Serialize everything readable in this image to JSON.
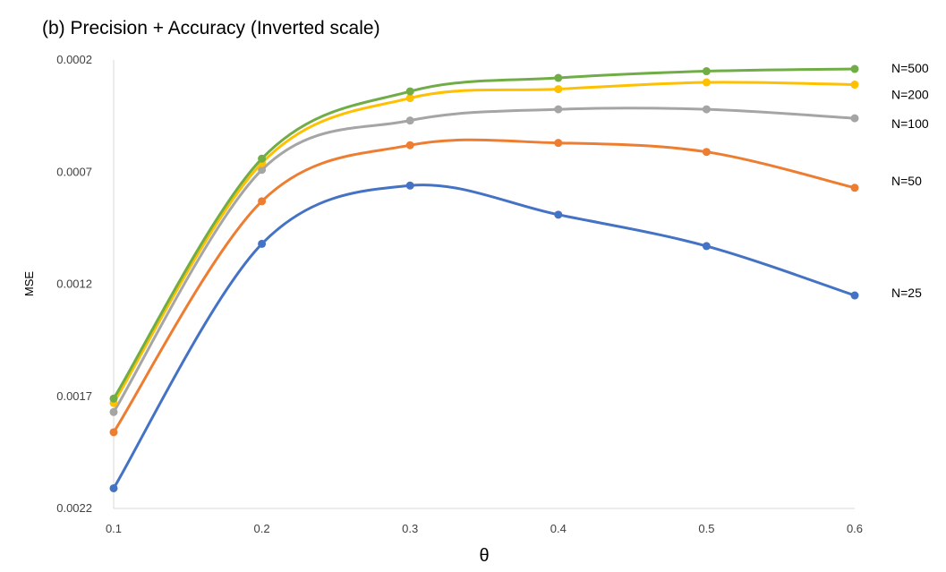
{
  "chart_data": {
    "type": "line",
    "title": "(b) Precision + Accuracy (Inverted scale)",
    "xlabel": "θ",
    "ylabel": "MSE",
    "x": [
      0.1,
      0.2,
      0.3,
      0.4,
      0.5,
      0.6
    ],
    "x_ticks": [
      "0.1",
      "0.2",
      "0.3",
      "0.4",
      "0.5",
      "0.6"
    ],
    "y_ticks": [
      "0.0002",
      "0.0007",
      "0.0012",
      "0.0017",
      "0.0022"
    ],
    "xlim": [
      0.1,
      0.6
    ],
    "ylim": [
      0.0002,
      0.0022
    ],
    "y_inverted": true,
    "grid": false,
    "legend": "labels at line ends (right)",
    "series": [
      {
        "name": "N=25",
        "color": "#4472C4",
        "values": [
          0.00211,
          0.00102,
          0.00076,
          0.00089,
          0.00103,
          0.00125
        ]
      },
      {
        "name": "N=50",
        "color": "#ED7D31",
        "values": [
          0.00186,
          0.00083,
          0.00058,
          0.00057,
          0.00061,
          0.00077
        ]
      },
      {
        "name": "N=100",
        "color": "#A5A5A5",
        "values": [
          0.00177,
          0.00069,
          0.00047,
          0.00042,
          0.00042,
          0.00046
        ]
      },
      {
        "name": "N=200",
        "color": "#FFC000",
        "values": [
          0.00173,
          0.00066,
          0.00037,
          0.00033,
          0.0003,
          0.00031
        ]
      },
      {
        "name": "N=500",
        "color": "#70AD47",
        "values": [
          0.00171,
          0.00064,
          0.00034,
          0.00028,
          0.00025,
          0.00024
        ]
      }
    ]
  }
}
